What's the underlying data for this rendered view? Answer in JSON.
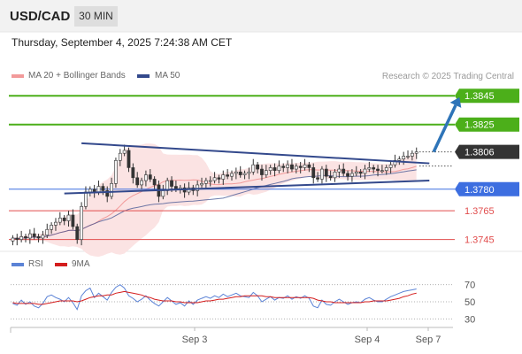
{
  "header": {
    "symbol": "USD/CAD",
    "timeframe": "30 MIN"
  },
  "datetime": "Thursday, September 4, 2025 7:24:38 AM CET",
  "credit": "Research © 2025 Trading Central",
  "colors": {
    "resistance": "#4caf1a",
    "current": "#333333",
    "pivot": "#3d6ee0",
    "support": "#e14c4c",
    "trend": "#33498c",
    "ma20": "#f29a9a",
    "ma50": "#33498c",
    "bollinger": "#fbe3e3",
    "rsi": "#5b83d6",
    "rsi_ma": "#d41d1d"
  },
  "chart_data": [
    {
      "type": "line",
      "title": "",
      "legend": [
        {
          "name": "MA 20 + Bollinger Bands",
          "color": "#f29a9a"
        },
        {
          "name": "MA 50",
          "color": "#33498c"
        }
      ],
      "legend_position": "top-left",
      "x_ticks": [
        "Sep 3",
        "Sep 4",
        "Sep 7"
      ],
      "ylim": [
        1.3738,
        1.3855
      ],
      "levels": [
        {
          "label": "1.3845",
          "value": 1.3845,
          "type": "resistance"
        },
        {
          "label": "1.3825",
          "value": 1.3825,
          "type": "resistance"
        },
        {
          "label": "1.3806",
          "value": 1.3806,
          "type": "current"
        },
        {
          "label": "1.3780",
          "value": 1.378,
          "type": "pivot"
        },
        {
          "label": "1.3765",
          "value": 1.3765,
          "type": "support"
        },
        {
          "label": "1.3745",
          "value": 1.3745,
          "type": "support"
        }
      ],
      "price_close": [
        1.3746,
        1.3745,
        1.3747,
        1.3746,
        1.3749,
        1.3747,
        1.3746,
        1.3748,
        1.3752,
        1.3755,
        1.3757,
        1.376,
        1.3758,
        1.3762,
        1.3754,
        1.3745,
        1.3768,
        1.3778,
        1.378,
        1.3778,
        1.3782,
        1.3779,
        1.3775,
        1.3784,
        1.38,
        1.3805,
        1.3807,
        1.3795,
        1.3788,
        1.3783,
        1.3786,
        1.379,
        1.3787,
        1.3783,
        1.3775,
        1.3779,
        1.3786,
        1.3782,
        1.378,
        1.3781,
        1.3778,
        1.3781,
        1.3779,
        1.3783,
        1.3784,
        1.3786,
        1.3786,
        1.3788,
        1.3787,
        1.379,
        1.3789,
        1.3791,
        1.3792,
        1.379,
        1.3791,
        1.3792,
        1.3797,
        1.3794,
        1.379,
        1.3793,
        1.3795,
        1.3793,
        1.3796,
        1.3795,
        1.3797,
        1.3794,
        1.3796,
        1.3795,
        1.3797,
        1.3795,
        1.3788,
        1.3787,
        1.3794,
        1.3789,
        1.3788,
        1.3792,
        1.3794,
        1.3791,
        1.3789,
        1.3791,
        1.3792,
        1.3791,
        1.3794,
        1.3795,
        1.3794,
        1.3793,
        1.3793,
        1.3795,
        1.3797,
        1.38,
        1.3801,
        1.3803,
        1.3803,
        1.3805,
        1.3806
      ],
      "triangle": {
        "upper": [
          [
            16,
            1.3812
          ],
          [
            97,
            1.3798
          ]
        ],
        "lower": [
          [
            12,
            1.3777
          ],
          [
            97,
            1.3786
          ]
        ]
      },
      "projection": [
        [
          98,
          1.3806
        ],
        [
          104,
          1.3844
        ]
      ]
    },
    {
      "type": "line",
      "title": "RSI",
      "legend": [
        {
          "name": "RSI",
          "color": "#5b83d6"
        },
        {
          "name": "9MA",
          "color": "#d41d1d"
        }
      ],
      "ylim": [
        20,
        80
      ],
      "y_ticks": [
        70,
        50,
        30
      ],
      "series": [
        {
          "name": "RSI",
          "values": [
            48,
            46,
            52,
            47,
            50,
            45,
            43,
            48,
            56,
            58,
            55,
            53,
            50,
            55,
            49,
            41,
            57,
            63,
            66,
            55,
            60,
            56,
            52,
            61,
            67,
            70,
            66,
            57,
            54,
            50,
            53,
            57,
            52,
            48,
            45,
            50,
            55,
            51,
            47,
            49,
            45,
            51,
            47,
            52,
            54,
            56,
            54,
            57,
            55,
            59,
            56,
            58,
            60,
            57,
            56,
            55,
            61,
            57,
            50,
            53,
            56,
            52,
            55,
            54,
            57,
            53,
            56,
            54,
            57,
            54,
            45,
            43,
            52,
            47,
            46,
            50,
            53,
            50,
            47,
            49,
            50,
            49,
            53,
            55,
            52,
            50,
            50,
            53,
            56,
            58,
            60,
            62,
            63,
            64,
            65
          ]
        },
        {
          "name": "9MA",
          "values": [
            49,
            48,
            48,
            48,
            48,
            48,
            47,
            47,
            48,
            49,
            50,
            51,
            51,
            51,
            51,
            50,
            51,
            53,
            55,
            56,
            57,
            57,
            58,
            58,
            60,
            61,
            62,
            61,
            60,
            59,
            58,
            56,
            55,
            53,
            52,
            51,
            51,
            51,
            50,
            50,
            49,
            49,
            49,
            49,
            50,
            51,
            51,
            52,
            53,
            53,
            54,
            55,
            56,
            56,
            57,
            57,
            57,
            57,
            57,
            56,
            56,
            55,
            55,
            55,
            55,
            55,
            55,
            55,
            55,
            55,
            54,
            52,
            51,
            50,
            50,
            49,
            49,
            49,
            49,
            49,
            49,
            49,
            50,
            50,
            51,
            51,
            51,
            51,
            52,
            53,
            54,
            56,
            57,
            59,
            60
          ]
        }
      ]
    }
  ]
}
